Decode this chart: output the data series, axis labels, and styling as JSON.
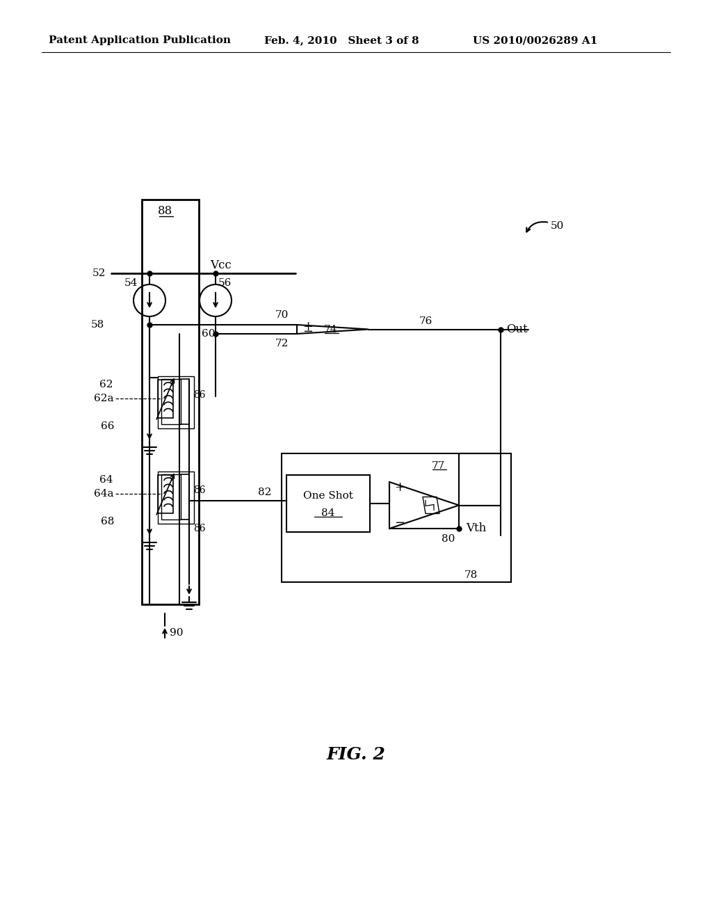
{
  "header_left": "Patent Application Publication",
  "header_mid": "Feb. 4, 2010   Sheet 3 of 8",
  "header_right": "US 2010/0026289 A1",
  "fig_caption": "FIG. 2",
  "bg_color": "#ffffff"
}
